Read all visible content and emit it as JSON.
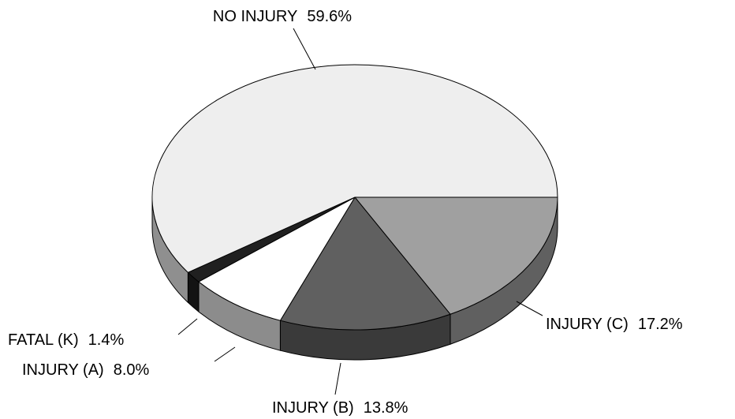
{
  "chart_data": {
    "type": "pie",
    "categories": [
      "INJURY (C)",
      "INJURY (B)",
      "INJURY (A)",
      "FATAL (K)",
      "NO INJURY"
    ],
    "values": [
      17.2,
      13.8,
      8.0,
      1.4,
      59.6
    ],
    "value_labels": [
      "17.2%",
      "13.8%",
      "8.0%",
      "1.4%",
      "59.6%"
    ],
    "colors": [
      "#a0a0a0",
      "#606060",
      "#ffffff",
      "#202020",
      "#eeeeee"
    ]
  }
}
